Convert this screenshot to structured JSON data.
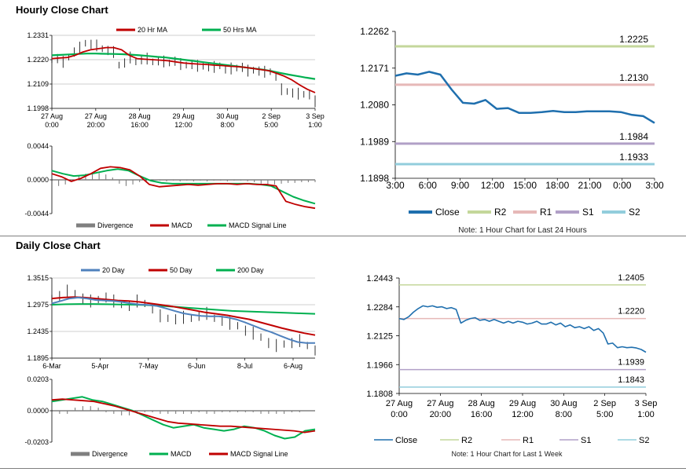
{
  "colors": {
    "ma20": "#c00000",
    "ma50": "#00b050",
    "price": "#000000",
    "divergence": "#7f7f7f",
    "macd_red": "#c00000",
    "macd_green": "#00b050",
    "close": "#1f6fae",
    "r2": "#c4d79b",
    "r1": "#e6b8b7",
    "s1": "#b1a0c7",
    "s2": "#92cddc",
    "day20": "#4f81bd",
    "day50": "#c00000",
    "day200": "#00b050"
  },
  "hourly": {
    "title": "Hourly Close Chart",
    "price_chart": {
      "chart_data": {
        "type": "line",
        "title": "Hourly Close Chart",
        "x_tick_labels": [
          [
            "27 Aug",
            "0:00"
          ],
          [
            "27 Aug",
            "20:00"
          ],
          [
            "28 Aug",
            "16:00"
          ],
          [
            "29 Aug",
            "12:00"
          ],
          [
            "30 Aug",
            "8:00"
          ],
          [
            "2 Sep",
            "5:00"
          ],
          [
            "3 Sep",
            "1:00"
          ]
        ],
        "y_ticks": [
          "1.2331",
          "1.2220",
          "1.2109",
          "1.1998"
        ],
        "ylim": [
          1.1998,
          1.2331
        ],
        "legend": [
          "20 Hr MA",
          "50 Hrs MA"
        ],
        "series": [
          {
            "name": "Close",
            "values": [
              1.222,
              1.2225,
              1.221,
              1.2232,
              1.2255,
              1.2275,
              1.2295,
              1.229,
              1.2285,
              1.227,
              1.2262,
              1.2255,
              1.2195,
              1.2205,
              1.223,
              1.221,
              1.222,
              1.2225,
              1.221,
              1.2215,
              1.2212,
              1.2205,
              1.2213,
              1.22,
              1.2195,
              1.2198,
              1.2192,
              1.219,
              1.2188,
              1.2187,
              1.2192,
              1.2178,
              1.218,
              1.2182,
              1.2185,
              1.217,
              1.2172,
              1.2168,
              1.2165,
              1.2165,
              1.2145,
              1.2085,
              1.2075,
              1.2068,
              1.2065,
              1.2062,
              1.206,
              1.203
            ]
          },
          {
            "name": "20 Hr MA",
            "values": [
              1.2225,
              1.2228,
              1.223,
              1.224,
              1.2255,
              1.2265,
              1.227,
              1.2275,
              1.2275,
              1.2265,
              1.224,
              1.2225,
              1.2222,
              1.222,
              1.2218,
              1.2215,
              1.221,
              1.2205,
              1.2202,
              1.22,
              1.2198,
              1.2195,
              1.2193,
              1.219,
              1.2188,
              1.2185,
              1.218,
              1.2175,
              1.217,
              1.2158,
              1.2145,
              1.2128,
              1.2105,
              1.2085,
              1.207
            ]
          },
          {
            "name": "50 Hrs MA",
            "values": [
              1.224,
              1.2242,
              1.2244,
              1.2246,
              1.2248,
              1.2248,
              1.2247,
              1.2246,
              1.2245,
              1.2243,
              1.224,
              1.2237,
              1.2233,
              1.223,
              1.2225,
              1.222,
              1.2215,
              1.221,
              1.2205,
              1.22,
              1.2195,
              1.219,
              1.2185,
              1.218,
              1.2175,
              1.2168,
              1.216,
              1.2152,
              1.2145,
              1.2138,
              1.2132
            ]
          }
        ]
      }
    },
    "macd_chart": {
      "chart_data": {
        "type": "line",
        "y_ticks": [
          "0.0044",
          "0.0000",
          "-0.0044"
        ],
        "ylim": [
          -0.0044,
          0.0044
        ],
        "legend": [
          "Divergence",
          "MACD",
          "MACD Signal Line"
        ],
        "series": [
          {
            "name": "Divergence",
            "values": [
              0.0,
              -0.0008,
              -0.0006,
              -0.0002,
              0.0005,
              0.0008,
              0.0009,
              0.0009,
              0.0007,
              0.0003,
              -0.0005,
              -0.0008,
              -0.0006,
              -0.0003,
              -0.0002,
              -0.0002,
              -0.0001,
              -0.0002,
              -0.0001,
              -0.0002,
              -0.0001,
              -0.0002,
              -0.0001,
              -0.0002,
              -0.0001,
              -0.0001,
              -0.0002,
              -0.0001,
              -0.0001,
              -0.0002,
              -0.0003,
              -0.0005,
              -0.0006,
              -0.0006,
              -0.0005,
              -0.0004,
              -0.0004,
              -0.0003,
              -0.0003,
              -0.0003
            ]
          },
          {
            "name": "MACD",
            "values": [
              0.0008,
              0.0004,
              -0.0002,
              0.0002,
              0.0008,
              0.0015,
              0.0017,
              0.0016,
              0.0013,
              0.0005,
              -0.0006,
              -0.0009,
              -0.0008,
              -0.0007,
              -0.0006,
              -0.0007,
              -0.0006,
              -0.0005,
              -0.0005,
              -0.0006,
              -0.0005,
              -0.0006,
              -0.0006,
              -0.0008,
              -0.0028,
              -0.0032,
              -0.0035,
              -0.0037
            ]
          },
          {
            "name": "MACD Signal Line",
            "values": [
              0.0012,
              0.0008,
              0.0005,
              0.0006,
              0.0009,
              0.0012,
              0.0014,
              0.0012,
              0.0005,
              -0.0001,
              -0.0004,
              -0.0005,
              -0.0005,
              -0.0005,
              -0.0005,
              -0.0005,
              -0.0005,
              -0.0005,
              -0.0005,
              -0.0006,
              -0.0008,
              -0.0015,
              -0.0022,
              -0.0027,
              -0.0031
            ]
          }
        ]
      }
    },
    "levels_chart": {
      "chart_data": {
        "type": "line",
        "x_tick_labels": [
          "3:00",
          "6:00",
          "9:00",
          "12:00",
          "15:00",
          "18:00",
          "21:00",
          "0:00",
          "3:00"
        ],
        "y_ticks": [
          "1.2262",
          "1.2171",
          "1.2080",
          "1.1989",
          "1.1898"
        ],
        "ylim": [
          1.1898,
          1.2262
        ],
        "legend": [
          "Close",
          "R2",
          "R1",
          "S1",
          "S2"
        ],
        "levels": [
          {
            "name": "R2",
            "value": 1.2225,
            "label": "1.2225"
          },
          {
            "name": "R1",
            "value": 1.213,
            "label": "1.2130"
          },
          {
            "name": "S1",
            "value": 1.1984,
            "label": "1.1984"
          },
          {
            "name": "S2",
            "value": 1.1933,
            "label": "1.1933"
          }
        ],
        "series": [
          {
            "name": "Close",
            "values": [
              1.2152,
              1.2158,
              1.2155,
              1.2162,
              1.2155,
              1.2118,
              1.2085,
              1.2083,
              1.2092,
              1.207,
              1.2072,
              1.206,
              1.206,
              1.2062,
              1.2065,
              1.2062,
              1.2062,
              1.2064,
              1.2064,
              1.2064,
              1.2062,
              1.2055,
              1.2052,
              1.2035
            ]
          }
        ]
      }
    },
    "note": "Note: 1 Hour Chart for Last 24 Hours"
  },
  "daily": {
    "title": "Daily Close Chart",
    "price_chart": {
      "chart_data": {
        "type": "line",
        "title": "Daily Close Chart",
        "x_tick_labels": [
          "6-Mar",
          "5-Apr",
          "7-May",
          "6-Jun",
          "8-Jul",
          "6-Aug"
        ],
        "y_ticks": [
          "1.3515",
          "1.2975",
          "1.2435",
          "1.1895"
        ],
        "ylim": [
          1.1895,
          1.3515
        ],
        "legend": [
          "20 Day",
          "50 Day",
          "200 Day"
        ],
        "series": [
          {
            "name": "Close",
            "values": [
              1.31,
              1.315,
              1.325,
              1.32,
              1.31,
              1.305,
              1.308,
              1.312,
              1.305,
              1.298,
              1.295,
              1.305,
              1.3,
              1.29,
              1.275,
              1.27,
              1.268,
              1.272,
              1.27,
              1.275,
              1.28,
              1.27,
              1.265,
              1.26,
              1.255,
              1.245,
              1.24,
              1.232,
              1.22,
              1.215,
              1.218,
              1.22,
              1.225,
              1.215,
              1.205
            ]
          },
          {
            "name": "20 Day",
            "values": [
              1.3,
              1.305,
              1.31,
              1.312,
              1.31,
              1.307,
              1.306,
              1.305,
              1.303,
              1.3,
              1.298,
              1.297,
              1.295,
              1.29,
              1.285,
              1.28,
              1.277,
              1.275,
              1.274,
              1.274,
              1.272,
              1.268,
              1.262,
              1.255,
              1.248,
              1.242,
              1.235,
              1.228,
              1.222,
              1.22,
              1.22
            ]
          },
          {
            "name": "50 Day",
            "values": [
              1.31,
              1.312,
              1.313,
              1.312,
              1.31,
              1.308,
              1.306,
              1.305,
              1.303,
              1.3,
              1.297,
              1.294,
              1.29,
              1.286,
              1.282,
              1.279,
              1.276,
              1.272,
              1.268,
              1.262,
              1.256,
              1.25,
              1.245,
              1.24,
              1.236
            ]
          },
          {
            "name": "200 Day",
            "values": [
              1.2975,
              1.2985,
              1.299,
              1.299,
              1.2985,
              1.298,
              1.2975,
              1.2965,
              1.295,
              1.293,
              1.291,
              1.289,
              1.287,
              1.285,
              1.284,
              1.283,
              1.282,
              1.281,
              1.28,
              1.279
            ]
          }
        ]
      }
    },
    "macd_chart": {
      "chart_data": {
        "type": "line",
        "y_ticks": [
          "0.0203",
          "0.0000",
          "-0.0203"
        ],
        "ylim": [
          -0.0203,
          0.0203
        ],
        "legend": [
          "Divergence",
          "MACD",
          "MACD Signal Line"
        ],
        "series": [
          {
            "name": "Divergence",
            "values": [
              0.0,
              -0.002,
              -0.002,
              0.002,
              0.003,
              0.003,
              0.002,
              -0.001,
              -0.002,
              -0.003,
              -0.003,
              -0.002,
              -0.001,
              -0.001,
              -0.002,
              -0.002,
              -0.002,
              -0.002,
              -0.002,
              -0.001,
              -0.002,
              -0.002,
              -0.001,
              -0.001,
              -0.001,
              -0.001,
              -0.001,
              -0.002,
              -0.002,
              -0.002,
              -0.002,
              -0.001,
              -0.001,
              0.0,
              0.0
            ]
          },
          {
            "name": "MACD",
            "values": [
              0.006,
              0.007,
              0.008,
              0.009,
              0.007,
              0.006,
              0.004,
              0.002,
              0.0,
              -0.003,
              -0.006,
              -0.009,
              -0.011,
              -0.01,
              -0.009,
              -0.011,
              -0.012,
              -0.013,
              -0.012,
              -0.01,
              -0.011,
              -0.013,
              -0.016,
              -0.018,
              -0.017,
              -0.013,
              -0.012
            ]
          },
          {
            "name": "MACD Signal Line",
            "values": [
              0.007,
              0.0075,
              0.007,
              0.0065,
              0.006,
              0.0045,
              0.003,
              0.001,
              -0.001,
              -0.003,
              -0.005,
              -0.007,
              -0.008,
              -0.0085,
              -0.009,
              -0.0095,
              -0.01,
              -0.01,
              -0.0105,
              -0.011,
              -0.0115,
              -0.012,
              -0.0125,
              -0.013,
              -0.014,
              -0.013
            ]
          }
        ]
      }
    },
    "levels_chart": {
      "chart_data": {
        "type": "line",
        "x_tick_labels": [
          [
            "27 Aug",
            "0:00"
          ],
          [
            "27 Aug",
            "20:00"
          ],
          [
            "28 Aug",
            "16:00"
          ],
          [
            "29 Aug",
            "12:00"
          ],
          [
            "30 Aug",
            "8:00"
          ],
          [
            "2 Sep",
            "5:00"
          ],
          [
            "3 Sep",
            "1:00"
          ]
        ],
        "y_ticks": [
          "1.2443",
          "1.2284",
          "1.2125",
          "1.1966",
          "1.1808"
        ],
        "ylim": [
          1.1808,
          1.2443
        ],
        "legend": [
          "Close",
          "R2",
          "R1",
          "S1",
          "S2"
        ],
        "levels": [
          {
            "name": "R2",
            "value": 1.2405,
            "label": "1.2405"
          },
          {
            "name": "R1",
            "value": 1.222,
            "label": "1.2220"
          },
          {
            "name": "S1",
            "value": 1.1939,
            "label": "1.1939"
          },
          {
            "name": "S2",
            "value": 1.1843,
            "label": "1.1843"
          }
        ],
        "series": [
          {
            "name": "Close",
            "values": [
              1.222,
              1.2215,
              1.223,
              1.2255,
              1.2275,
              1.229,
              1.2285,
              1.229,
              1.2282,
              1.2285,
              1.2275,
              1.228,
              1.227,
              1.2195,
              1.221,
              1.222,
              1.2225,
              1.221,
              1.2215,
              1.2205,
              1.2215,
              1.2205,
              1.2195,
              1.2205,
              1.2195,
              1.2205,
              1.22,
              1.219,
              1.2195,
              1.2205,
              1.219,
              1.219,
              1.22,
              1.2185,
              1.2195,
              1.2175,
              1.2185,
              1.217,
              1.2175,
              1.2165,
              1.2175,
              1.2155,
              1.2165,
              1.214,
              1.208,
              1.2085,
              1.206,
              1.2065,
              1.206,
              1.2062,
              1.2058,
              1.205,
              1.2035
            ]
          }
        ]
      }
    },
    "note": "Note: 1 Hour Chart for Last 1 Week"
  }
}
